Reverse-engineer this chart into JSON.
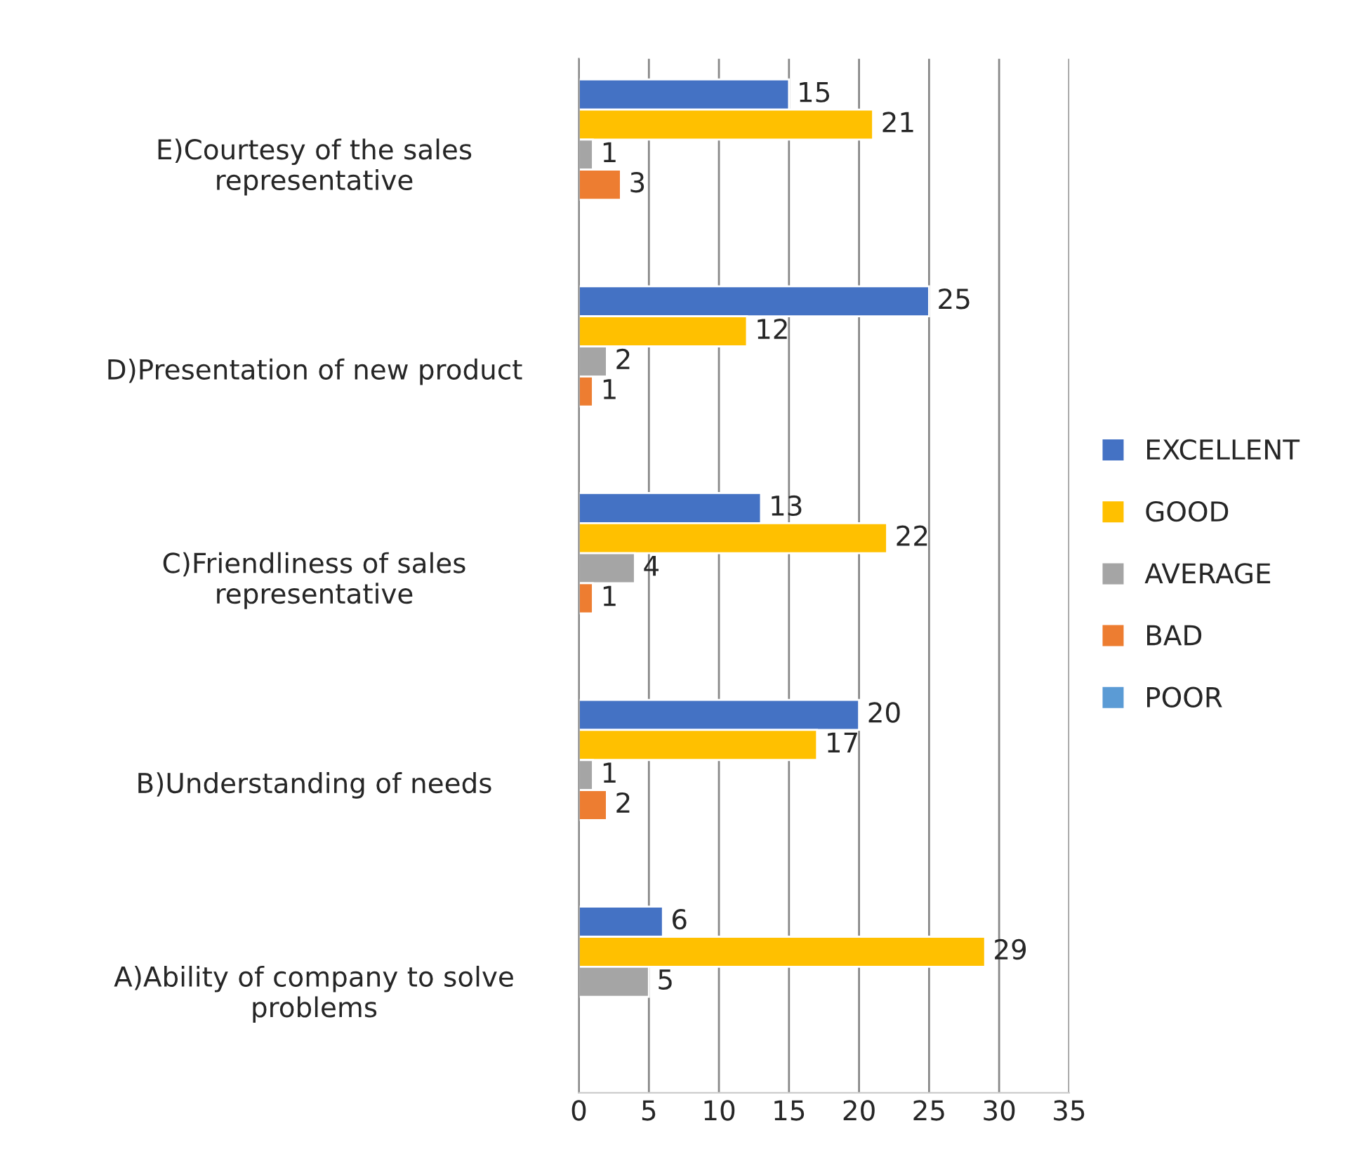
{
  "chart_data": {
    "type": "bar",
    "orientation": "horizontal",
    "categories": [
      "E)Courtesy of the sales\nrepresentative",
      "D)Presentation of new product",
      "C)Friendliness of sales\nrepresentative",
      "B)Understanding of needs",
      "A)Ability of company to solve\nproblems"
    ],
    "series": [
      {
        "name": "EXCELLENT",
        "color": "#4472c4",
        "values": [
          15,
          25,
          13,
          20,
          6
        ]
      },
      {
        "name": "GOOD",
        "color": "#ffc000",
        "values": [
          21,
          12,
          22,
          17,
          29
        ]
      },
      {
        "name": "AVERAGE",
        "color": "#a5a5a5",
        "values": [
          1,
          2,
          4,
          1,
          5
        ]
      },
      {
        "name": "BAD",
        "color": "#ed7d31",
        "values": [
          3,
          1,
          1,
          2,
          null
        ]
      },
      {
        "name": "POOR",
        "color": "#5b9bd5",
        "values": [
          null,
          null,
          null,
          null,
          null
        ]
      }
    ],
    "xlim": [
      0,
      35
    ],
    "xticks": [
      0,
      5,
      10,
      15,
      20,
      25,
      30,
      35
    ],
    "grid": "x",
    "legend": "right",
    "data_labels": true
  }
}
